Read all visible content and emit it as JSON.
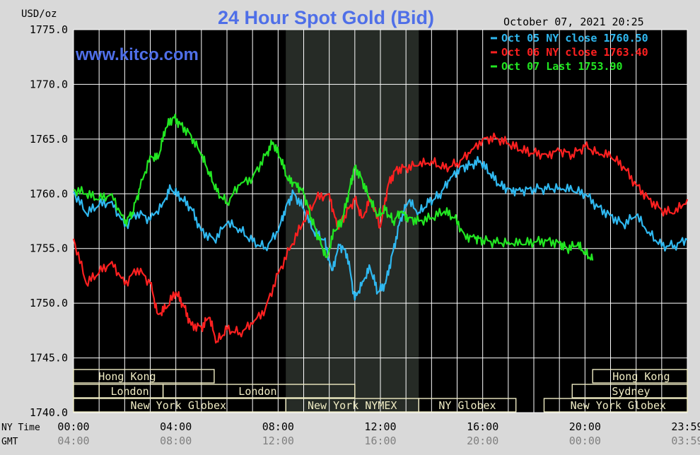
{
  "header": {
    "title": "24 Hour Spot Gold (Bid)",
    "unit": "USD/oz",
    "timestamp": "October 07, 2021 20:25",
    "website": "www.kitco.com"
  },
  "colors": {
    "background": "#d9d9d9",
    "plot": "#000000",
    "grid": "#ffffff",
    "title": "#4f6fe8",
    "oct05": "#2fb8f0",
    "oct06": "#ff2020",
    "oct07": "#22e622",
    "nymex_shade": "#262b26",
    "session_box": "#f0ecc4"
  },
  "axis_labels": {
    "ny_time": "NY Time",
    "gmt": "GMT"
  },
  "chart_data": {
    "type": "line",
    "title": "24 Hour Spot Gold (Bid)",
    "ylabel": "USD/oz",
    "ylim": [
      1740,
      1775
    ],
    "xlim": [
      0,
      24
    ],
    "grid": true,
    "legend_position": "top-right",
    "y_ticks": [
      "1775.0",
      "1770.0",
      "1765.0",
      "1760.0",
      "1755.0",
      "1750.0",
      "1745.0",
      "1740.0"
    ],
    "y_tick_values": [
      1775,
      1770,
      1765,
      1760,
      1755,
      1750,
      1745,
      1740
    ],
    "x_ticks_ny": [
      "00:00",
      "04:00",
      "08:00",
      "12:00",
      "16:00",
      "20:00",
      "23:59"
    ],
    "x_ticks_gmt": [
      "04:00",
      "08:00",
      "12:00",
      "16:00",
      "20:00",
      "00:00",
      "03:59"
    ],
    "x_tick_values": [
      0,
      4,
      8,
      12,
      16,
      20,
      24
    ],
    "legend": [
      {
        "text": "Oct 05 NY close 1760.50",
        "color": "#2fb8f0"
      },
      {
        "text": "Oct 06 NY close 1763.40",
        "color": "#ff2020"
      },
      {
        "text": "Oct 07 Last 1753.90",
        "color": "#22e622"
      }
    ],
    "series": [
      {
        "name": "Oct 05",
        "color": "#2fb8f0",
        "points": [
          [
            0,
            1760.2
          ],
          [
            0.5,
            1758.2
          ],
          [
            1,
            1759.0
          ],
          [
            1.5,
            1759.3
          ],
          [
            2,
            1757.0
          ],
          [
            2.5,
            1758.3
          ],
          [
            3,
            1757.6
          ],
          [
            3.5,
            1759.2
          ],
          [
            3.8,
            1760.5
          ],
          [
            4.2,
            1759.6
          ],
          [
            4.6,
            1758.7
          ],
          [
            5,
            1756.6
          ],
          [
            5.5,
            1755.8
          ],
          [
            6,
            1757.3
          ],
          [
            6.5,
            1756.8
          ],
          [
            7,
            1755.6
          ],
          [
            7.5,
            1755.1
          ],
          [
            8,
            1756.5
          ],
          [
            8.3,
            1758.8
          ],
          [
            8.6,
            1760.1
          ],
          [
            9,
            1758.6
          ],
          [
            9.4,
            1756.5
          ],
          [
            9.8,
            1755.8
          ],
          [
            10.1,
            1753.0
          ],
          [
            10.4,
            1755.3
          ],
          [
            10.7,
            1754.5
          ],
          [
            11,
            1750.3
          ],
          [
            11.3,
            1752.0
          ],
          [
            11.6,
            1753.2
          ],
          [
            11.9,
            1751.0
          ],
          [
            12.2,
            1751.8
          ],
          [
            12.5,
            1754.8
          ],
          [
            12.8,
            1757.8
          ],
          [
            13.1,
            1759.3
          ],
          [
            13.5,
            1758.3
          ],
          [
            13.9,
            1759.2
          ],
          [
            14.3,
            1759.9
          ],
          [
            14.7,
            1761.2
          ],
          [
            15.1,
            1762.4
          ],
          [
            15.5,
            1762.6
          ],
          [
            15.9,
            1763.0
          ],
          [
            16.3,
            1761.8
          ],
          [
            16.7,
            1760.7
          ],
          [
            17.1,
            1760.4
          ],
          [
            17.5,
            1760.2
          ],
          [
            18,
            1760.5
          ],
          [
            18.5,
            1760.4
          ],
          [
            19,
            1760.6
          ],
          [
            19.5,
            1760.3
          ],
          [
            20,
            1760.0
          ],
          [
            20.5,
            1758.8
          ],
          [
            21,
            1758.0
          ],
          [
            21.5,
            1757.2
          ],
          [
            22,
            1758.0
          ],
          [
            22.5,
            1756.5
          ],
          [
            23,
            1755.2
          ],
          [
            23.5,
            1755.3
          ],
          [
            24,
            1755.8
          ]
        ]
      },
      {
        "name": "Oct 06",
        "color": "#ff2020",
        "points": [
          [
            0,
            1755.9
          ],
          [
            0.5,
            1751.8
          ],
          [
            1,
            1752.8
          ],
          [
            1.5,
            1753.8
          ],
          [
            2,
            1751.7
          ],
          [
            2.5,
            1753.2
          ],
          [
            3,
            1751.8
          ],
          [
            3.3,
            1749.0
          ],
          [
            3.6,
            1749.5
          ],
          [
            4,
            1751.0
          ],
          [
            4.3,
            1749.8
          ],
          [
            4.6,
            1748.0
          ],
          [
            5,
            1747.8
          ],
          [
            5.3,
            1748.7
          ],
          [
            5.6,
            1746.5
          ],
          [
            6,
            1747.6
          ],
          [
            6.5,
            1747.3
          ],
          [
            7,
            1748.1
          ],
          [
            7.5,
            1749.5
          ],
          [
            8,
            1752.7
          ],
          [
            8.5,
            1755.2
          ],
          [
            9,
            1757.5
          ],
          [
            9.5,
            1759.6
          ],
          [
            10,
            1760.0
          ],
          [
            10.3,
            1757.0
          ],
          [
            10.6,
            1758.0
          ],
          [
            11,
            1759.5
          ],
          [
            11.3,
            1757.8
          ],
          [
            11.6,
            1759.5
          ],
          [
            12,
            1757.0
          ],
          [
            12.3,
            1760.8
          ],
          [
            12.6,
            1762.2
          ],
          [
            13,
            1762.4
          ],
          [
            13.5,
            1762.6
          ],
          [
            14,
            1763.0
          ],
          [
            14.5,
            1762.3
          ],
          [
            15,
            1762.8
          ],
          [
            15.5,
            1763.7
          ],
          [
            16,
            1765.0
          ],
          [
            16.5,
            1765.1
          ],
          [
            17,
            1764.6
          ],
          [
            17.5,
            1764.0
          ],
          [
            18,
            1763.7
          ],
          [
            18.5,
            1763.6
          ],
          [
            19,
            1763.9
          ],
          [
            19.5,
            1763.6
          ],
          [
            20,
            1764.3
          ],
          [
            20.5,
            1763.8
          ],
          [
            21,
            1763.4
          ],
          [
            21.5,
            1762.5
          ],
          [
            22,
            1760.8
          ],
          [
            22.5,
            1759.5
          ],
          [
            23,
            1758.5
          ],
          [
            23.5,
            1758.2
          ],
          [
            24,
            1759.5
          ]
        ]
      },
      {
        "name": "Oct 07",
        "color": "#22e622",
        "points": [
          [
            0,
            1760.4
          ],
          [
            0.5,
            1760.0
          ],
          [
            1,
            1759.5
          ],
          [
            1.5,
            1760.0
          ],
          [
            2,
            1757.3
          ],
          [
            2.3,
            1758.3
          ],
          [
            2.6,
            1760.5
          ],
          [
            3,
            1763.5
          ],
          [
            3.3,
            1763.2
          ],
          [
            3.6,
            1766.0
          ],
          [
            3.9,
            1767.0
          ],
          [
            4.2,
            1766.3
          ],
          [
            4.6,
            1765.3
          ],
          [
            5,
            1763.5
          ],
          [
            5.3,
            1762.0
          ],
          [
            5.6,
            1760.2
          ],
          [
            6,
            1759.2
          ],
          [
            6.5,
            1760.8
          ],
          [
            7,
            1761.5
          ],
          [
            7.5,
            1763.5
          ],
          [
            7.8,
            1764.7
          ],
          [
            8.1,
            1763.2
          ],
          [
            8.4,
            1761.2
          ],
          [
            8.7,
            1761.0
          ],
          [
            9,
            1760.0
          ],
          [
            9.3,
            1757.8
          ],
          [
            9.6,
            1755.8
          ],
          [
            9.9,
            1754.2
          ],
          [
            10.2,
            1756.6
          ],
          [
            10.5,
            1757.5
          ],
          [
            10.8,
            1760.5
          ],
          [
            11,
            1762.5
          ],
          [
            11.3,
            1761.2
          ],
          [
            11.6,
            1759.3
          ],
          [
            11.9,
            1758.1
          ],
          [
            12.2,
            1758.5
          ],
          [
            12.5,
            1757.5
          ],
          [
            12.8,
            1758.3
          ],
          [
            13.1,
            1757.8
          ],
          [
            13.5,
            1757.5
          ],
          [
            14,
            1757.8
          ],
          [
            14.5,
            1758.4
          ],
          [
            14.9,
            1757.8
          ],
          [
            15.3,
            1756.2
          ],
          [
            15.7,
            1755.9
          ],
          [
            16,
            1755.8
          ],
          [
            16.5,
            1755.5
          ],
          [
            17,
            1755.6
          ],
          [
            17.5,
            1755.4
          ],
          [
            18,
            1755.6
          ],
          [
            18.5,
            1755.7
          ],
          [
            19,
            1755.5
          ],
          [
            19.3,
            1755.0
          ],
          [
            19.7,
            1755.3
          ],
          [
            20,
            1754.7
          ],
          [
            20.3,
            1753.9
          ]
        ]
      }
    ],
    "shaded_region": {
      "label": "NYMEX",
      "x_start": 8.3,
      "x_end": 13.5
    }
  },
  "sessions": [
    {
      "name": "Hong Kong",
      "row": 0,
      "start": 0,
      "end": 5.5,
      "label_at": 2.1
    },
    {
      "name": "",
      "row": 1,
      "start": 0,
      "end": 1.0,
      "label_at": 0.5
    },
    {
      "name": "London",
      "row": 1,
      "start": 1.0,
      "end": 3.5,
      "label_at": 2.2
    },
    {
      "name": "London",
      "row": 1,
      "start": 3.5,
      "end": 11.0,
      "label_at": 7.2
    },
    {
      "name": "New York Globex",
      "row": 2,
      "start": 0,
      "end": 8.3,
      "label_at": 4.1
    },
    {
      "name": "New York NYMEX",
      "row": 2,
      "start": 8.3,
      "end": 13.5,
      "label_at": 10.9
    },
    {
      "name": "NY Globex",
      "row": 2,
      "start": 13.5,
      "end": 17.3,
      "label_at": 15.4
    },
    {
      "name": "Hong Kong",
      "row": 0,
      "start": 20.3,
      "end": 24,
      "label_at": 22.2
    },
    {
      "name": "Sydney",
      "row": 1,
      "start": 19.5,
      "end": 24,
      "label_at": 21.8
    },
    {
      "name": "New York Globex",
      "row": 2,
      "start": 18.4,
      "end": 24,
      "label_at": 21.3
    }
  ]
}
